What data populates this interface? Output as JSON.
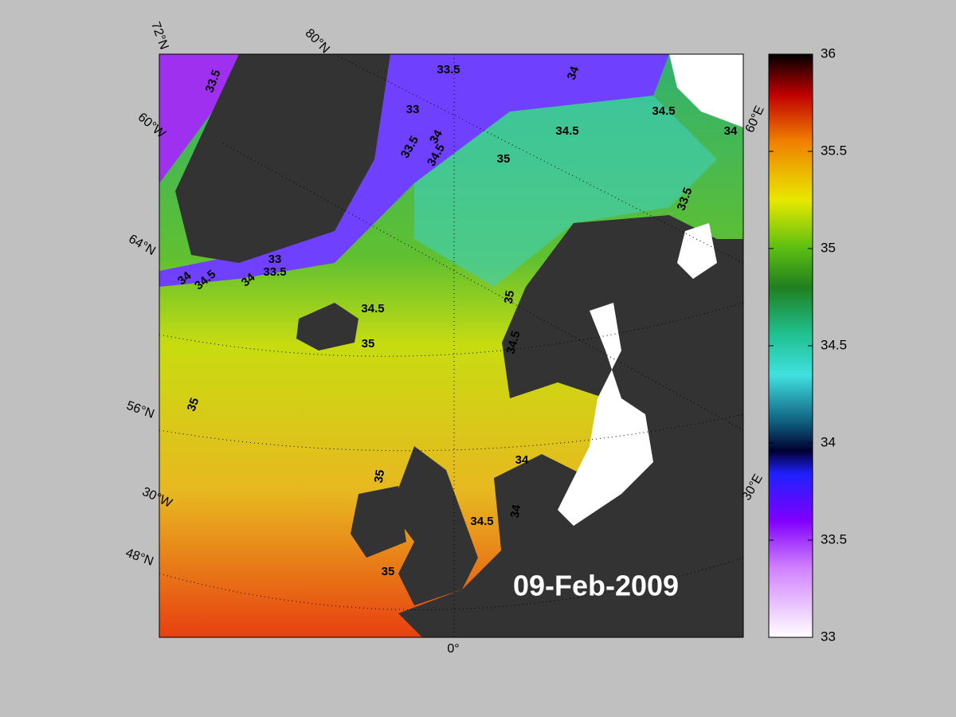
{
  "map": {
    "date_label": "09-Feb-2009",
    "graticule_labels": [
      "72°N",
      "80°N",
      "60°W",
      "64°N",
      "56°N",
      "30°W",
      "48°N",
      "0°",
      "60°E",
      "30°E"
    ],
    "contour_labels": [
      "33.5",
      "33.5",
      "34",
      "33",
      "34.5",
      "34",
      "34.5",
      "35",
      "33.5",
      "34",
      "34.5",
      "33",
      "33.5",
      "34",
      "34.5",
      "34",
      "33.5",
      "34.5",
      "35",
      "35",
      "34.5",
      "35",
      "35",
      "34",
      "34.5",
      "34",
      "35"
    ]
  },
  "colorbar": {
    "lim": [
      33,
      36
    ],
    "ticks": [
      33,
      33.5,
      34,
      34.5,
      35,
      35.5,
      36
    ]
  }
}
